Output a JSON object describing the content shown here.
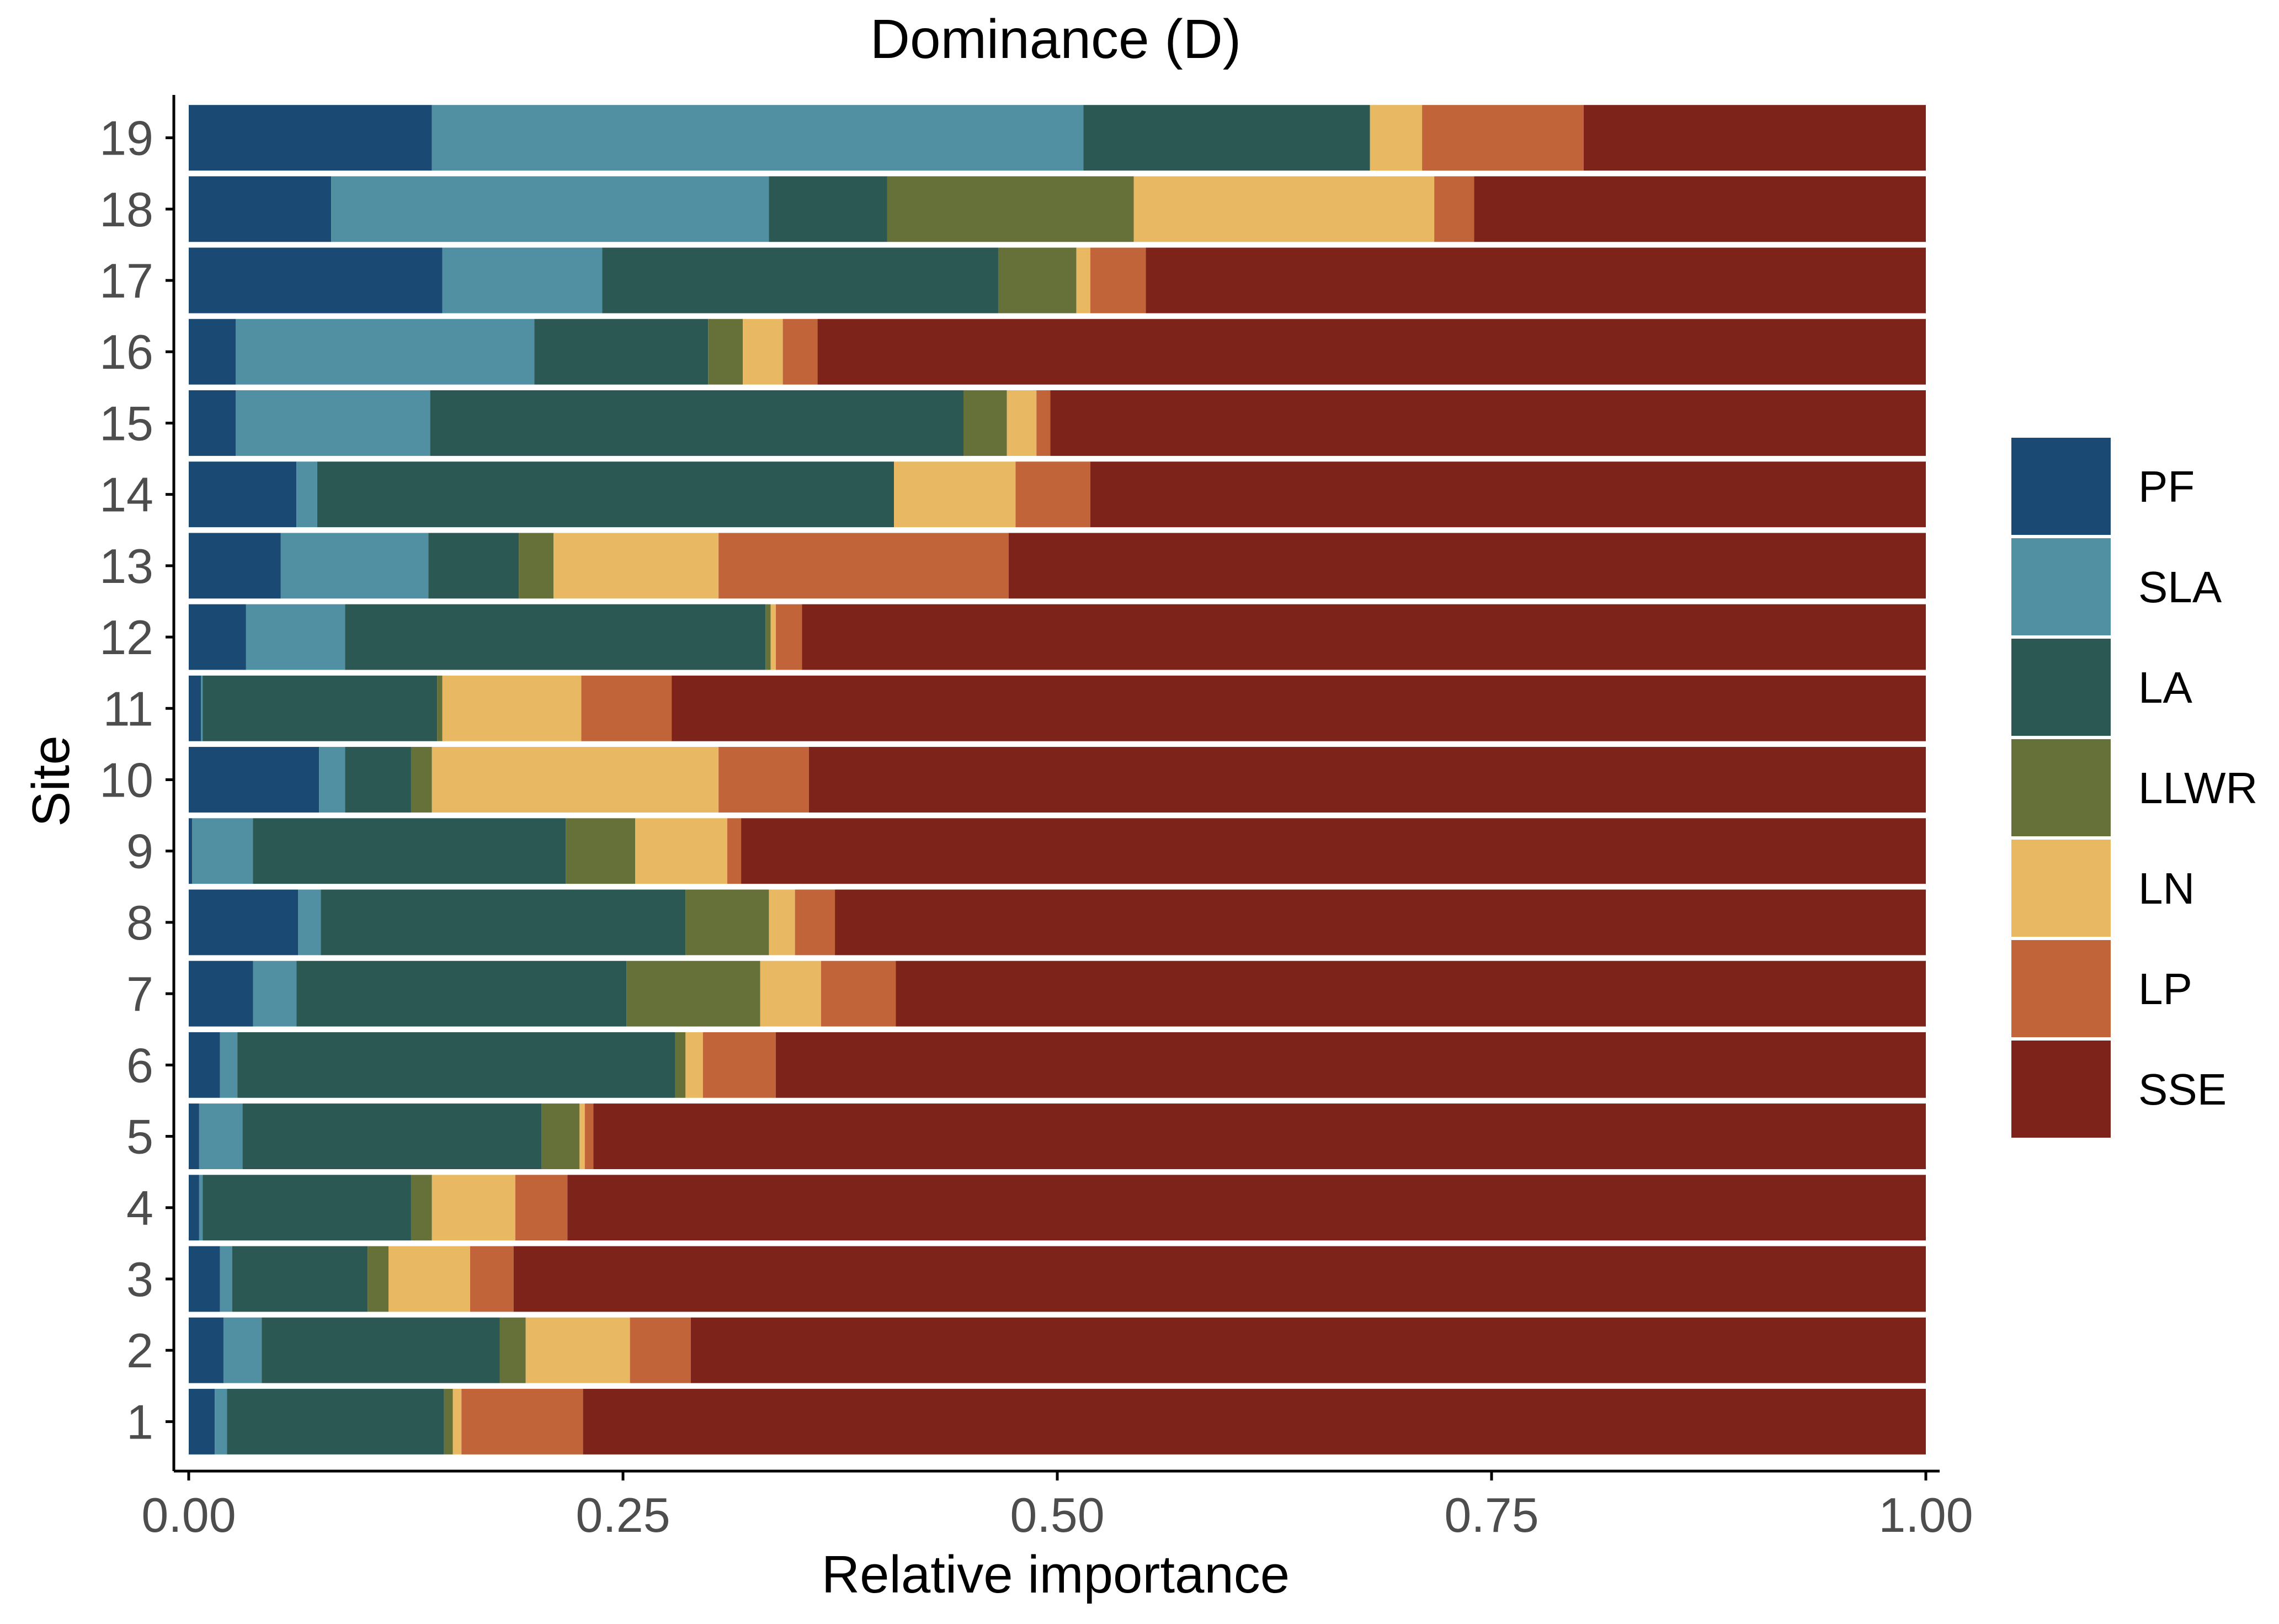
{
  "chart_data": {
    "type": "bar",
    "orientation": "horizontal",
    "stacked": true,
    "title": "Dominance (D)",
    "xlabel": "Relative importance",
    "ylabel": "Site",
    "xlim": [
      0,
      1
    ],
    "xticks": [
      0,
      0.25,
      0.5,
      0.75,
      1
    ],
    "xtick_labels": [
      "0.00",
      "0.25",
      "0.50",
      "0.75",
      "1.00"
    ],
    "categories": [
      "1",
      "2",
      "3",
      "4",
      "5",
      "6",
      "7",
      "8",
      "9",
      "10",
      "11",
      "12",
      "13",
      "14",
      "15",
      "16",
      "17",
      "18",
      "19"
    ],
    "series": [
      {
        "name": "PF",
        "color": "#1a4a74",
        "values": [
          0.015,
          0.02,
          0.018,
          0.006,
          0.006,
          0.018,
          0.037,
          0.063,
          0.002,
          0.075,
          0.007,
          0.033,
          0.053,
          0.062,
          0.027,
          0.027,
          0.146,
          0.082,
          0.14
        ]
      },
      {
        "name": "SLA",
        "color": "#518fa3",
        "values": [
          0.007,
          0.022,
          0.007,
          0.002,
          0.025,
          0.01,
          0.025,
          0.013,
          0.035,
          0.015,
          0.001,
          0.057,
          0.085,
          0.012,
          0.112,
          0.172,
          0.092,
          0.252,
          0.375
        ]
      },
      {
        "name": "LA",
        "color": "#2b5853",
        "values": [
          0.125,
          0.137,
          0.078,
          0.12,
          0.172,
          0.252,
          0.19,
          0.21,
          0.18,
          0.038,
          0.135,
          0.242,
          0.052,
          0.332,
          0.307,
          0.1,
          0.228,
          0.068,
          0.165
        ]
      },
      {
        "name": "LLWR",
        "color": "#667139",
        "values": [
          0.005,
          0.015,
          0.012,
          0.012,
          0.022,
          0.006,
          0.077,
          0.048,
          0.04,
          0.012,
          0.003,
          0.003,
          0.02,
          0.0,
          0.025,
          0.02,
          0.045,
          0.142,
          0.0
        ]
      },
      {
        "name": "LN",
        "color": "#e8b862",
        "values": [
          0.005,
          0.06,
          0.047,
          0.048,
          0.003,
          0.01,
          0.035,
          0.015,
          0.053,
          0.165,
          0.08,
          0.003,
          0.095,
          0.07,
          0.017,
          0.023,
          0.008,
          0.173,
          0.03
        ]
      },
      {
        "name": "LP",
        "color": "#c1643a",
        "values": [
          0.07,
          0.035,
          0.025,
          0.03,
          0.005,
          0.042,
          0.043,
          0.023,
          0.008,
          0.052,
          0.052,
          0.015,
          0.167,
          0.043,
          0.008,
          0.02,
          0.032,
          0.023,
          0.093
        ]
      },
      {
        "name": "SSE",
        "color": "#7d231a",
        "values": [
          0.773,
          0.711,
          0.813,
          0.782,
          0.767,
          0.662,
          0.593,
          0.628,
          0.682,
          0.643,
          0.722,
          0.647,
          0.528,
          0.481,
          0.504,
          0.638,
          0.449,
          0.26,
          0.197
        ]
      }
    ],
    "legend_position": "right"
  }
}
